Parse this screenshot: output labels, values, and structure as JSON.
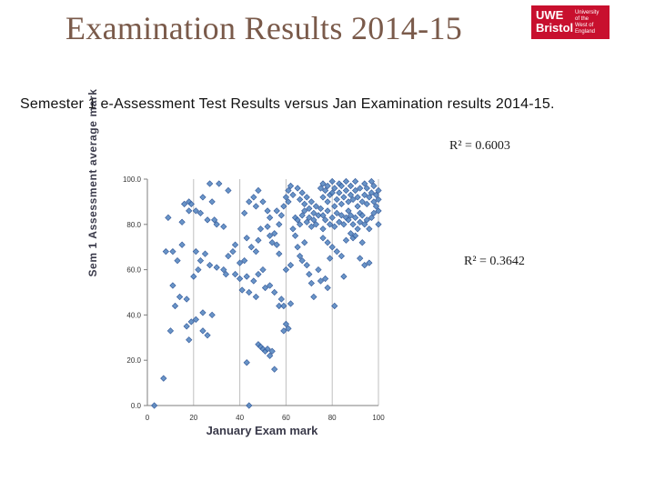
{
  "header": {
    "title": "Examination Results 2014-15",
    "logo_main": "UWE Bristol",
    "logo_sub": "University of the West of England"
  },
  "subtitle": "Semester 1 e-Assessment Test Results versus Jan Examination results 2014-15.",
  "colors": {
    "title": "#7a5a4a",
    "logo_bg": "#c8102e",
    "marker": "#4f81bd"
  },
  "chart_data": {
    "type": "scatter",
    "xlabel": "January Exam mark",
    "ylabel": "Sem 1 Assessment average mark",
    "xlim": [
      0,
      100
    ],
    "ylim": [
      0,
      100
    ],
    "x_ticks": [
      "0",
      "20",
      "40",
      "60",
      "80",
      "100"
    ],
    "y_ticks": [
      "0.0",
      "20.0",
      "40.0",
      "60.0",
      "80.0",
      "100.0"
    ],
    "grid": "vertical",
    "annotations": [
      "R² = 0.6003",
      "R² = 0.3642"
    ],
    "points": [
      [
        3,
        0
      ],
      [
        7,
        12
      ],
      [
        10,
        33
      ],
      [
        12,
        44
      ],
      [
        11,
        53
      ],
      [
        14,
        48
      ],
      [
        13,
        64
      ],
      [
        8,
        68
      ],
      [
        11,
        68
      ],
      [
        17,
        35
      ],
      [
        19,
        37
      ],
      [
        21,
        38
      ],
      [
        24,
        41
      ],
      [
        28,
        40
      ],
      [
        24,
        33
      ],
      [
        26,
        31
      ],
      [
        18,
        29
      ],
      [
        17,
        47
      ],
      [
        20,
        57
      ],
      [
        22,
        60
      ],
      [
        23,
        64
      ],
      [
        21,
        68
      ],
      [
        25,
        67
      ],
      [
        27,
        62
      ],
      [
        30,
        61
      ],
      [
        33,
        60
      ],
      [
        34,
        58
      ],
      [
        38,
        58
      ],
      [
        15,
        71
      ],
      [
        9,
        83
      ],
      [
        15,
        81
      ],
      [
        18,
        86
      ],
      [
        21,
        86
      ],
      [
        23,
        85
      ],
      [
        26,
        82
      ],
      [
        29,
        82
      ],
      [
        30,
        80
      ],
      [
        33,
        79
      ],
      [
        16,
        89
      ],
      [
        18,
        90
      ],
      [
        19,
        89
      ],
      [
        24,
        92
      ],
      [
        28,
        90
      ],
      [
        27,
        98
      ],
      [
        31,
        98
      ],
      [
        35,
        95
      ],
      [
        35,
        66
      ],
      [
        37,
        68
      ],
      [
        38,
        71
      ],
      [
        40,
        63
      ],
      [
        42,
        64
      ],
      [
        40,
        56
      ],
      [
        43,
        57
      ],
      [
        46,
        55
      ],
      [
        48,
        58
      ],
      [
        50,
        60
      ],
      [
        51,
        52
      ],
      [
        43,
        74
      ],
      [
        45,
        70
      ],
      [
        47,
        68
      ],
      [
        48,
        73
      ],
      [
        49,
        78
      ],
      [
        52,
        79
      ],
      [
        53,
        75
      ],
      [
        54,
        72
      ],
      [
        55,
        76
      ],
      [
        56,
        71
      ],
      [
        57,
        67
      ],
      [
        57,
        80
      ],
      [
        41,
        51
      ],
      [
        44,
        50
      ],
      [
        47,
        48
      ],
      [
        53,
        53
      ],
      [
        55,
        50
      ],
      [
        57,
        44
      ],
      [
        58,
        47
      ],
      [
        59,
        44
      ],
      [
        62,
        45
      ],
      [
        59,
        33
      ],
      [
        60,
        36
      ],
      [
        61,
        34
      ],
      [
        48,
        27
      ],
      [
        49,
        26
      ],
      [
        50,
        25
      ],
      [
        51,
        24
      ],
      [
        52,
        25
      ],
      [
        53,
        22
      ],
      [
        54,
        24
      ],
      [
        55,
        16
      ],
      [
        43,
        19
      ],
      [
        44,
        0
      ],
      [
        42,
        85
      ],
      [
        44,
        90
      ],
      [
        46,
        92
      ],
      [
        48,
        95
      ],
      [
        47,
        88
      ],
      [
        50,
        90
      ],
      [
        52,
        86
      ],
      [
        53,
        83
      ],
      [
        56,
        86
      ],
      [
        58,
        84
      ],
      [
        59,
        88
      ],
      [
        60,
        92
      ],
      [
        61,
        90
      ],
      [
        63,
        78
      ],
      [
        64,
        75
      ],
      [
        65,
        70
      ],
      [
        66,
        66
      ],
      [
        67,
        64
      ],
      [
        68,
        72
      ],
      [
        69,
        62
      ],
      [
        70,
        58
      ],
      [
        71,
        54
      ],
      [
        72,
        48
      ],
      [
        60,
        60
      ],
      [
        62,
        62
      ],
      [
        61,
        95
      ],
      [
        62,
        97
      ],
      [
        63,
        93
      ],
      [
        65,
        96
      ],
      [
        66,
        91
      ],
      [
        67,
        94
      ],
      [
        68,
        89
      ],
      [
        69,
        92
      ],
      [
        70,
        87
      ],
      [
        71,
        90
      ],
      [
        72,
        85
      ],
      [
        73,
        88
      ],
      [
        64,
        83
      ],
      [
        65,
        82
      ],
      [
        66,
        80
      ],
      [
        67,
        84
      ],
      [
        68,
        86
      ],
      [
        69,
        81
      ],
      [
        70,
        83
      ],
      [
        71,
        79
      ],
      [
        72,
        82
      ],
      [
        73,
        80
      ],
      [
        74,
        84
      ],
      [
        75,
        96
      ],
      [
        76,
        98
      ],
      [
        76,
        92
      ],
      [
        77,
        95
      ],
      [
        78,
        97
      ],
      [
        78,
        90
      ],
      [
        79,
        93
      ],
      [
        80,
        99
      ],
      [
        80,
        94
      ],
      [
        81,
        96
      ],
      [
        81,
        88
      ],
      [
        82,
        91
      ],
      [
        83,
        98
      ],
      [
        83,
        94
      ],
      [
        84,
        97
      ],
      [
        84,
        89
      ],
      [
        85,
        92
      ],
      [
        86,
        99
      ],
      [
        86,
        95
      ],
      [
        87,
        90
      ],
      [
        87,
        86
      ],
      [
        88,
        97
      ],
      [
        88,
        93
      ],
      [
        89,
        91
      ],
      [
        90,
        99
      ],
      [
        90,
        95
      ],
      [
        91,
        88
      ],
      [
        91,
        92
      ],
      [
        92,
        96
      ],
      [
        92,
        85
      ],
      [
        93,
        90
      ],
      [
        94,
        98
      ],
      [
        94,
        93
      ],
      [
        95,
        89
      ],
      [
        95,
        96
      ],
      [
        96,
        92
      ],
      [
        97,
        99
      ],
      [
        97,
        94
      ],
      [
        98,
        90
      ],
      [
        98,
        97
      ],
      [
        99,
        93
      ],
      [
        99,
        88
      ],
      [
        100,
        95
      ],
      [
        100,
        91
      ],
      [
        100,
        86
      ],
      [
        100,
        80
      ],
      [
        75,
        87
      ],
      [
        76,
        84
      ],
      [
        77,
        82
      ],
      [
        78,
        86
      ],
      [
        79,
        80
      ],
      [
        80,
        83
      ],
      [
        81,
        79
      ],
      [
        82,
        85
      ],
      [
        83,
        81
      ],
      [
        84,
        84
      ],
      [
        85,
        80
      ],
      [
        86,
        83
      ],
      [
        87,
        82
      ],
      [
        88,
        84
      ],
      [
        89,
        80
      ],
      [
        90,
        83
      ],
      [
        91,
        78
      ],
      [
        92,
        81
      ],
      [
        93,
        84
      ],
      [
        94,
        80
      ],
      [
        95,
        82
      ],
      [
        96,
        78
      ],
      [
        97,
        83
      ],
      [
        98,
        85
      ],
      [
        76,
        74
      ],
      [
        78,
        72
      ],
      [
        80,
        70
      ],
      [
        82,
        68
      ],
      [
        84,
        66
      ],
      [
        86,
        73
      ],
      [
        88,
        76
      ],
      [
        89,
        74
      ],
      [
        92,
        65
      ],
      [
        94,
        62
      ],
      [
        96,
        63
      ],
      [
        74,
        60
      ],
      [
        75,
        55
      ],
      [
        78,
        52
      ],
      [
        77,
        56
      ],
      [
        81,
        44
      ],
      [
        79,
        65
      ],
      [
        85,
        57
      ],
      [
        76,
        78
      ],
      [
        90,
        75
      ],
      [
        93,
        72
      ]
    ]
  }
}
